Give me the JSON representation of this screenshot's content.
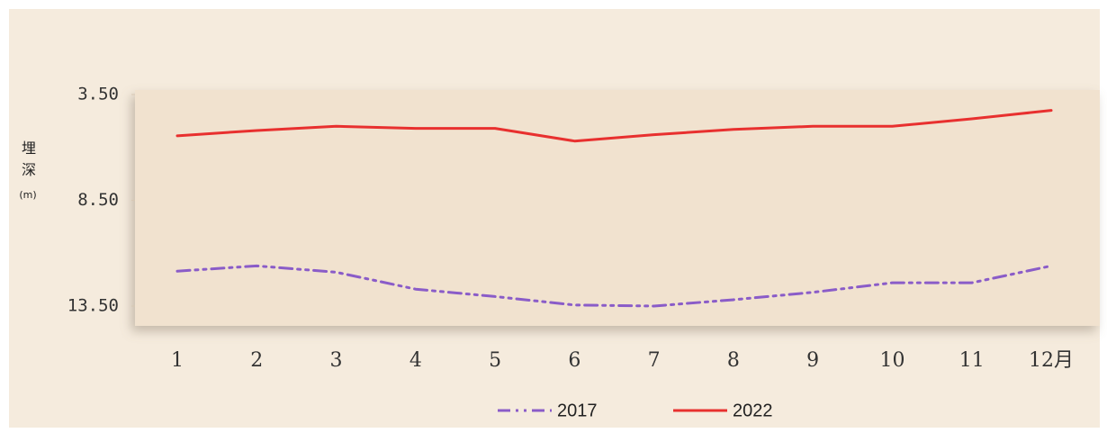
{
  "chart_data": {
    "type": "line",
    "y_label": "埋深",
    "y_unit": "(m)",
    "categories": [
      "1",
      "2",
      "3",
      "4",
      "5",
      "6",
      "7",
      "8",
      "9",
      "10",
      "11",
      "12月"
    ],
    "series": [
      {
        "name": "2017",
        "color": "#8a5cc8",
        "dash": "dashdot",
        "values": [
          11.85,
          11.6,
          11.9,
          12.7,
          13.05,
          13.45,
          13.5,
          13.2,
          12.85,
          12.4,
          12.4,
          11.6
        ]
      },
      {
        "name": "2022",
        "color": "#e8302f",
        "dash": "solid",
        "values": [
          5.45,
          5.2,
          5.0,
          5.1,
          5.1,
          5.7,
          5.4,
          5.15,
          5.0,
          5.0,
          4.65,
          4.25
        ]
      }
    ],
    "ylim": [
      3.5,
      13.5
    ],
    "inverted": true,
    "yticks": [
      {
        "value": 3.5,
        "label": "3.50"
      },
      {
        "value": 8.5,
        "label": "8.50"
      },
      {
        "value": 13.5,
        "label": "13.50"
      }
    ],
    "grid": false,
    "legend": "bottom"
  }
}
